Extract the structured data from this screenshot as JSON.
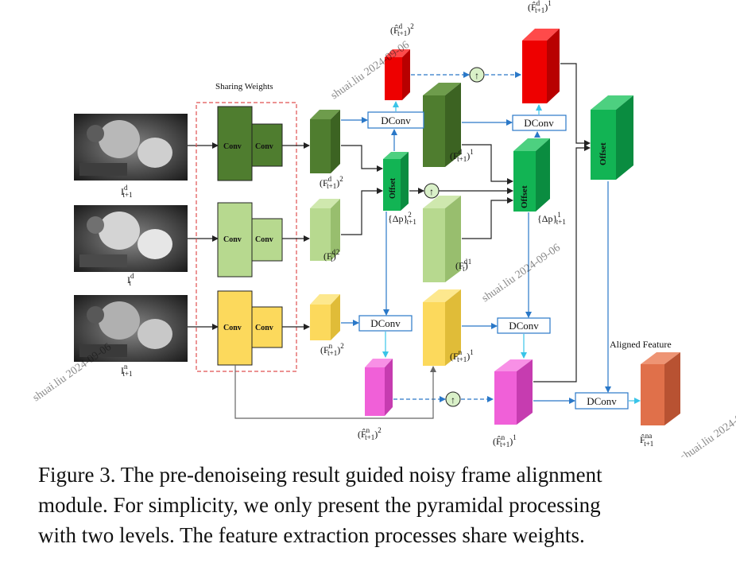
{
  "sharing_weights": "Sharing Weights",
  "conv": "Conv",
  "dconv": "DConv",
  "offset": "Offset",
  "aligned_feature": "Aligned Feature",
  "upsample_symbol": "↑",
  "inputs": [
    {
      "sym": "I",
      "sup": "d",
      "sub": "t+1"
    },
    {
      "sym": "I",
      "sup": "d",
      "sub": "t"
    },
    {
      "sym": "I",
      "sup": "n",
      "sub": "t+1"
    }
  ],
  "labels": {
    "f_d_t1_2": {
      "sym": "(F",
      "sup": "d",
      "sub": "t+1",
      "post": ")",
      "exp": "2"
    },
    "f_d_t_2": {
      "sym": "(F",
      "sup": "d",
      "sub": "t",
      "post": ")",
      "exp": "2"
    },
    "f_n_t1_2": {
      "sym": "(F",
      "sup": "n",
      "sub": "t+1",
      "post": ")",
      "exp": "2"
    },
    "f_d_t1_1": {
      "sym": "(F",
      "sup": "d",
      "sub": "t+1",
      "post": ")",
      "exp": "1"
    },
    "f_d_t_1": {
      "sym": "(F",
      "sup": "d",
      "sub": "t",
      "post": ")",
      "exp": "1"
    },
    "f_n_t1_1": {
      "sym": "(F",
      "sup": "n",
      "sub": "t+1",
      "post": ")",
      "exp": "1"
    },
    "fhat_d_2": {
      "sym": "(F̂",
      "sup": "d",
      "sub": "t+1",
      "post": ")",
      "exp": "2"
    },
    "fhat_d_1": {
      "sym": "(F̂",
      "sup": "d",
      "sub": "t+1",
      "post": ")",
      "exp": "1"
    },
    "fhat_n_2": {
      "sym": "(F̂",
      "sup": "n",
      "sub": "t+1",
      "post": ")",
      "exp": "2"
    },
    "fhat_n_1": {
      "sym": "(F̂",
      "sup": "n",
      "sub": "t+1",
      "post": ")",
      "exp": "1"
    },
    "dp_2": {
      "sym": "{Δp}",
      "sup": "2",
      "sub": "t+1",
      "post": "",
      "exp": ""
    },
    "dp_1": {
      "sym": "{Δp}",
      "sup": "1",
      "sub": "t+1",
      "post": "",
      "exp": ""
    },
    "fhat_na": {
      "sym": "F̂",
      "sup": "na",
      "sub": "t+1",
      "post": "",
      "exp": ""
    }
  },
  "watermark": "shuai.liu 2024-09-06",
  "caption": [
    "Figure 3. The pre-denoiseing result guided noisy frame alignment",
    "module. For simplicity, we only present the pyramidal processing",
    "with two levels. The feature extraction processes share weights."
  ],
  "colors": {
    "green_dark": "#4f7d2f",
    "green_light": "#b7d98f",
    "yellow": "#fcd95c",
    "red": "#ee0000",
    "pink": "#f060d8",
    "offset_green": "#12b454",
    "orange": "#e0704a",
    "blue_arrow": "#2a78c8",
    "cyan_arrow": "#39c4e8",
    "dash_red": "#e04848"
  }
}
